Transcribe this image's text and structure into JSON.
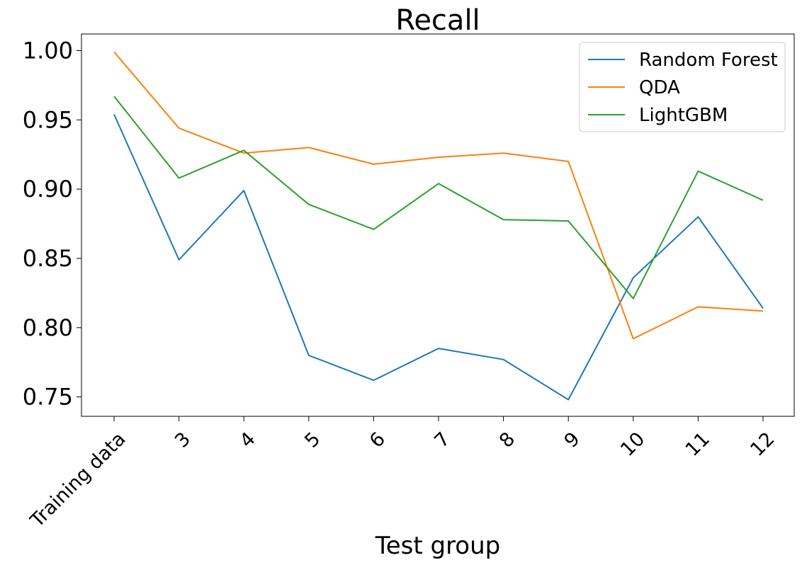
{
  "chart_data": {
    "type": "line",
    "title": "Recall",
    "xlabel": "Test group",
    "ylabel": "",
    "categories": [
      "Training data",
      "3",
      "4",
      "5",
      "6",
      "7",
      "8",
      "9",
      "10",
      "11",
      "12"
    ],
    "ylim": [
      0.736,
      1.012
    ],
    "yticks": [
      "0.75",
      "0.80",
      "0.85",
      "0.90",
      "0.95",
      "1.00"
    ],
    "legend_position": "top-right",
    "grid": false,
    "series": [
      {
        "name": "Random Forest",
        "color": "#1f77b4",
        "values": [
          0.954,
          0.849,
          0.899,
          0.78,
          0.762,
          0.785,
          0.777,
          0.748,
          0.836,
          0.88,
          0.814
        ]
      },
      {
        "name": "QDA",
        "color": "#ff7f0e",
        "values": [
          0.999,
          0.944,
          0.926,
          0.93,
          0.918,
          0.923,
          0.926,
          0.92,
          0.792,
          0.815,
          0.812
        ]
      },
      {
        "name": "LightGBM",
        "color": "#2ca02c",
        "values": [
          0.967,
          0.908,
          0.928,
          0.889,
          0.871,
          0.904,
          0.878,
          0.877,
          0.821,
          0.913,
          0.892
        ]
      }
    ]
  }
}
